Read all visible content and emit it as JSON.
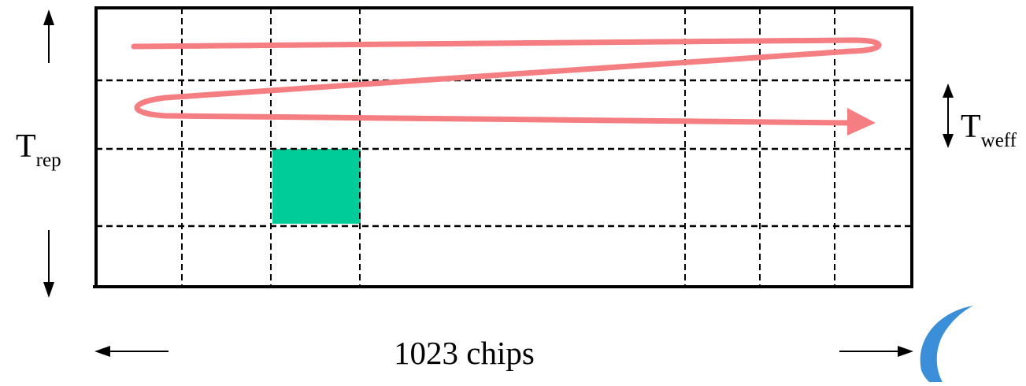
{
  "diagram": {
    "labels": {
      "t_rep": {
        "main": "T",
        "sub": "rep"
      },
      "t_weff": {
        "main": "T",
        "sub": "weff"
      },
      "chips": "1023 chips"
    },
    "grid": {
      "rows": 4,
      "column_groups_left": 3,
      "column_groups_right": 3,
      "line_style": "dashed"
    },
    "highlighted_cell": {
      "row": 3,
      "column": 3
    },
    "colors": {
      "frame": "#000000",
      "grid": "#000000",
      "highlight_cell": "#00cc99",
      "scan_path": "#f47e82",
      "logo": "#3a8fd8"
    },
    "icons": [
      "up-arrow-icon",
      "down-arrow-icon",
      "double-headed-arrow-icon",
      "left-arrow-icon",
      "right-arrow-icon",
      "scan-path-arrow-icon",
      "logo-icon"
    ]
  }
}
